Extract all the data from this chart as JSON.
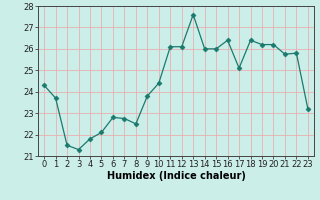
{
  "x": [
    0,
    1,
    2,
    3,
    4,
    5,
    6,
    7,
    8,
    9,
    10,
    11,
    12,
    13,
    14,
    15,
    16,
    17,
    18,
    19,
    20,
    21,
    22,
    23
  ],
  "y": [
    24.3,
    23.7,
    21.5,
    21.3,
    21.8,
    22.1,
    22.8,
    22.75,
    22.5,
    23.8,
    24.4,
    26.1,
    26.1,
    27.6,
    26.0,
    26.0,
    26.4,
    25.1,
    26.4,
    26.2,
    26.2,
    25.75,
    25.8,
    23.2
  ],
  "xlabel": "Humidex (Indice chaleur)",
  "ylim": [
    21,
    28
  ],
  "xlim_min": -0.5,
  "xlim_max": 23.5,
  "yticks": [
    21,
    22,
    23,
    24,
    25,
    26,
    27,
    28
  ],
  "xticks": [
    0,
    1,
    2,
    3,
    4,
    5,
    6,
    7,
    8,
    9,
    10,
    11,
    12,
    13,
    14,
    15,
    16,
    17,
    18,
    19,
    20,
    21,
    22,
    23
  ],
  "line_color": "#1a7a6e",
  "marker": "D",
  "marker_size": 2.5,
  "bg_color": "#cceee8",
  "grid_color": "#e8b0b0",
  "tick_fontsize": 6,
  "xlabel_fontsize": 7
}
